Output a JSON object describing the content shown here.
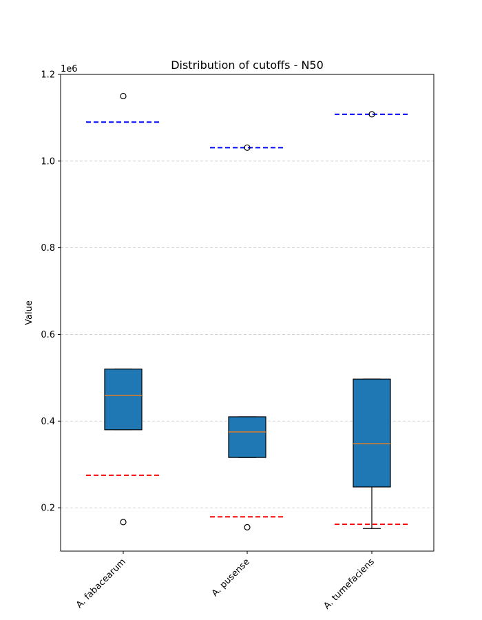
{
  "chart_data": {
    "type": "box",
    "title": "Distribution of cutoffs - N50",
    "xlabel": "",
    "ylabel": "Value",
    "y_scale_label": "1e6",
    "y_multiplier": 1000000,
    "ylim": [
      0.1,
      1.2
    ],
    "yticks": [
      0.2,
      0.4,
      0.6,
      0.8,
      1.0,
      1.2
    ],
    "ytick_labels": [
      "0.2",
      "0.4",
      "0.6",
      "0.8",
      "1.0",
      "1.2"
    ],
    "grid": "y-dashed",
    "categories": [
      "A. fabacearum",
      "A. pusense",
      "A. tumefaciens"
    ],
    "boxes": [
      {
        "q1": 0.38,
        "median": 0.459,
        "q3": 0.52,
        "whisker_low": 0.38,
        "whisker_high": 0.52,
        "outliers": [
          1.15,
          0.167
        ],
        "upper_cutoff": 1.09,
        "lower_cutoff": 0.275
      },
      {
        "q1": 0.316,
        "median": 0.375,
        "q3": 0.41,
        "whisker_low": 0.316,
        "whisker_high": 0.41,
        "outliers": [
          1.031,
          0.155
        ],
        "upper_cutoff": 1.031,
        "lower_cutoff": 0.179
      },
      {
        "q1": 0.248,
        "median": 0.348,
        "q3": 0.497,
        "whisker_low": 0.152,
        "whisker_high": 0.497,
        "outliers": [
          1.108
        ],
        "upper_cutoff": 1.108,
        "lower_cutoff": 0.162
      }
    ],
    "colors": {
      "box_fill": "#1f77b4",
      "median": "#ff7f0e",
      "upper_cutoff": "#0000ff",
      "lower_cutoff": "#ff0000",
      "grid": "#cccccc"
    }
  }
}
